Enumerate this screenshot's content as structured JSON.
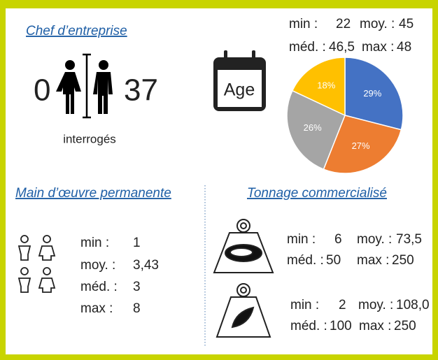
{
  "chef": {
    "title": "Chef d’entreprise",
    "min_count": 0,
    "max_count": 37,
    "caption": "interrogés"
  },
  "age": {
    "label": "Age",
    "stats": {
      "min_label": "min :",
      "min": 22,
      "moy_label": "moy. :",
      "moy": 45,
      "med_label": "méd. :",
      "med": "46,5",
      "max_label": "max :",
      "max": 48
    }
  },
  "chart_data": {
    "type": "pie",
    "values": [
      29,
      27,
      26,
      18
    ],
    "value_labels": [
      "29%",
      "27%",
      "26%",
      "18%"
    ],
    "colors": [
      "#4472c4",
      "#ed7d31",
      "#a5a5a5",
      "#ffc000"
    ]
  },
  "main_oeuvre": {
    "title": "Main d’œuvre permanente",
    "stats": {
      "min_label": "min :",
      "min": 1,
      "moy_label": "moy. :",
      "moy": "3,43",
      "med_label": "méd. :",
      "med": 3,
      "max_label": "max :",
      "max": 8
    }
  },
  "tonnage": {
    "title": "Tonnage commercialisé",
    "oyster": {
      "min_label": "min :",
      "min": 6,
      "moy_label": "moy. :",
      "moy": "73,5",
      "med_label": "méd. :",
      "med": 50,
      "max_label": "max :",
      "max": 250
    },
    "mussel": {
      "min_label": "min :",
      "min": 2,
      "moy_label": "moy. :",
      "moy": "108,0",
      "med_label": "méd. :",
      "med": 100,
      "max_label": "max :",
      "max": 250
    }
  }
}
